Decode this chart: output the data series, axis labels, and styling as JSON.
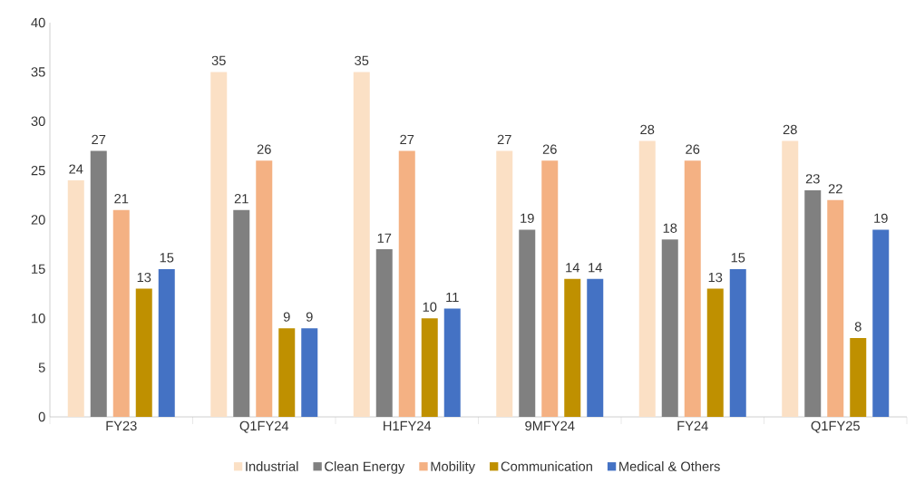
{
  "chart_data": {
    "type": "bar",
    "categories": [
      "FY23",
      "Q1FY24",
      "H1FY24",
      "9MFY24",
      "FY24",
      "Q1FY25"
    ],
    "series": [
      {
        "name": "Industrial",
        "color": "#fbe0c5",
        "values": [
          24,
          35,
          35,
          27,
          28,
          28
        ]
      },
      {
        "name": "Clean Energy",
        "color": "#808080",
        "values": [
          27,
          21,
          17,
          19,
          18,
          23
        ]
      },
      {
        "name": "Mobility",
        "color": "#f4b183",
        "values": [
          21,
          26,
          27,
          26,
          26,
          22
        ]
      },
      {
        "name": "Communication",
        "color": "#bf9000",
        "values": [
          13,
          9,
          10,
          14,
          13,
          8
        ]
      },
      {
        "name": "Medical & Others",
        "color": "#4472c4",
        "values": [
          15,
          9,
          11,
          14,
          15,
          19
        ]
      }
    ],
    "ylim": [
      0,
      40
    ],
    "yticks": [
      0,
      5,
      10,
      15,
      20,
      25,
      30,
      35,
      40
    ],
    "grid": false,
    "legend": "bottom",
    "data_labels": true
  }
}
